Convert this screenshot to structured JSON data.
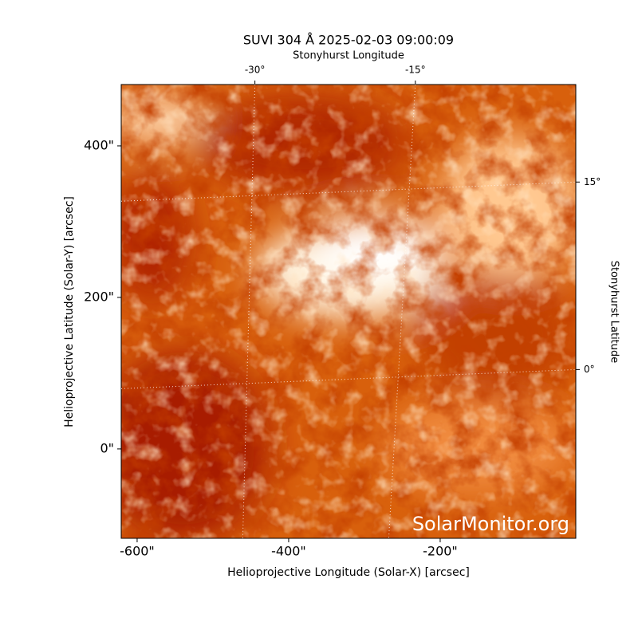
{
  "chart_data": {
    "type": "image",
    "title": "SUVI 304 Å 2025-02-03 09:00:09",
    "x_label": "Helioprojective Longitude (Solar-X) [arcsec]",
    "y_label": "Helioprojective Latitude (Solar-Y) [arcsec]",
    "x2_label": "Stonyhurst Longitude",
    "y2_label": "Stonyhurst Latitude",
    "watermark": "SolarMonitor.org",
    "xlim": [
      -621,
      -21
    ],
    "xticks": [
      {
        "value": -600,
        "label": "-600\""
      },
      {
        "value": -400,
        "label": "-400\""
      },
      {
        "value": -200,
        "label": "-200\""
      }
    ],
    "ylim": [
      -118,
      481
    ],
    "yticks": [
      {
        "value": 0,
        "label": "0\""
      },
      {
        "value": 200,
        "label": "200\""
      },
      {
        "value": 400,
        "label": "400\""
      }
    ],
    "x2lim": [
      -42.5,
      0
    ],
    "x2ticks": [
      {
        "value": -30,
        "label": "-30°"
      },
      {
        "value": -15,
        "label": "-15°"
      }
    ],
    "y2lim": [
      -13.5,
      22.8
    ],
    "y2ticks": [
      {
        "value": 0,
        "label": "0°"
      },
      {
        "value": 15,
        "label": "15°"
      }
    ],
    "grid": true
  }
}
